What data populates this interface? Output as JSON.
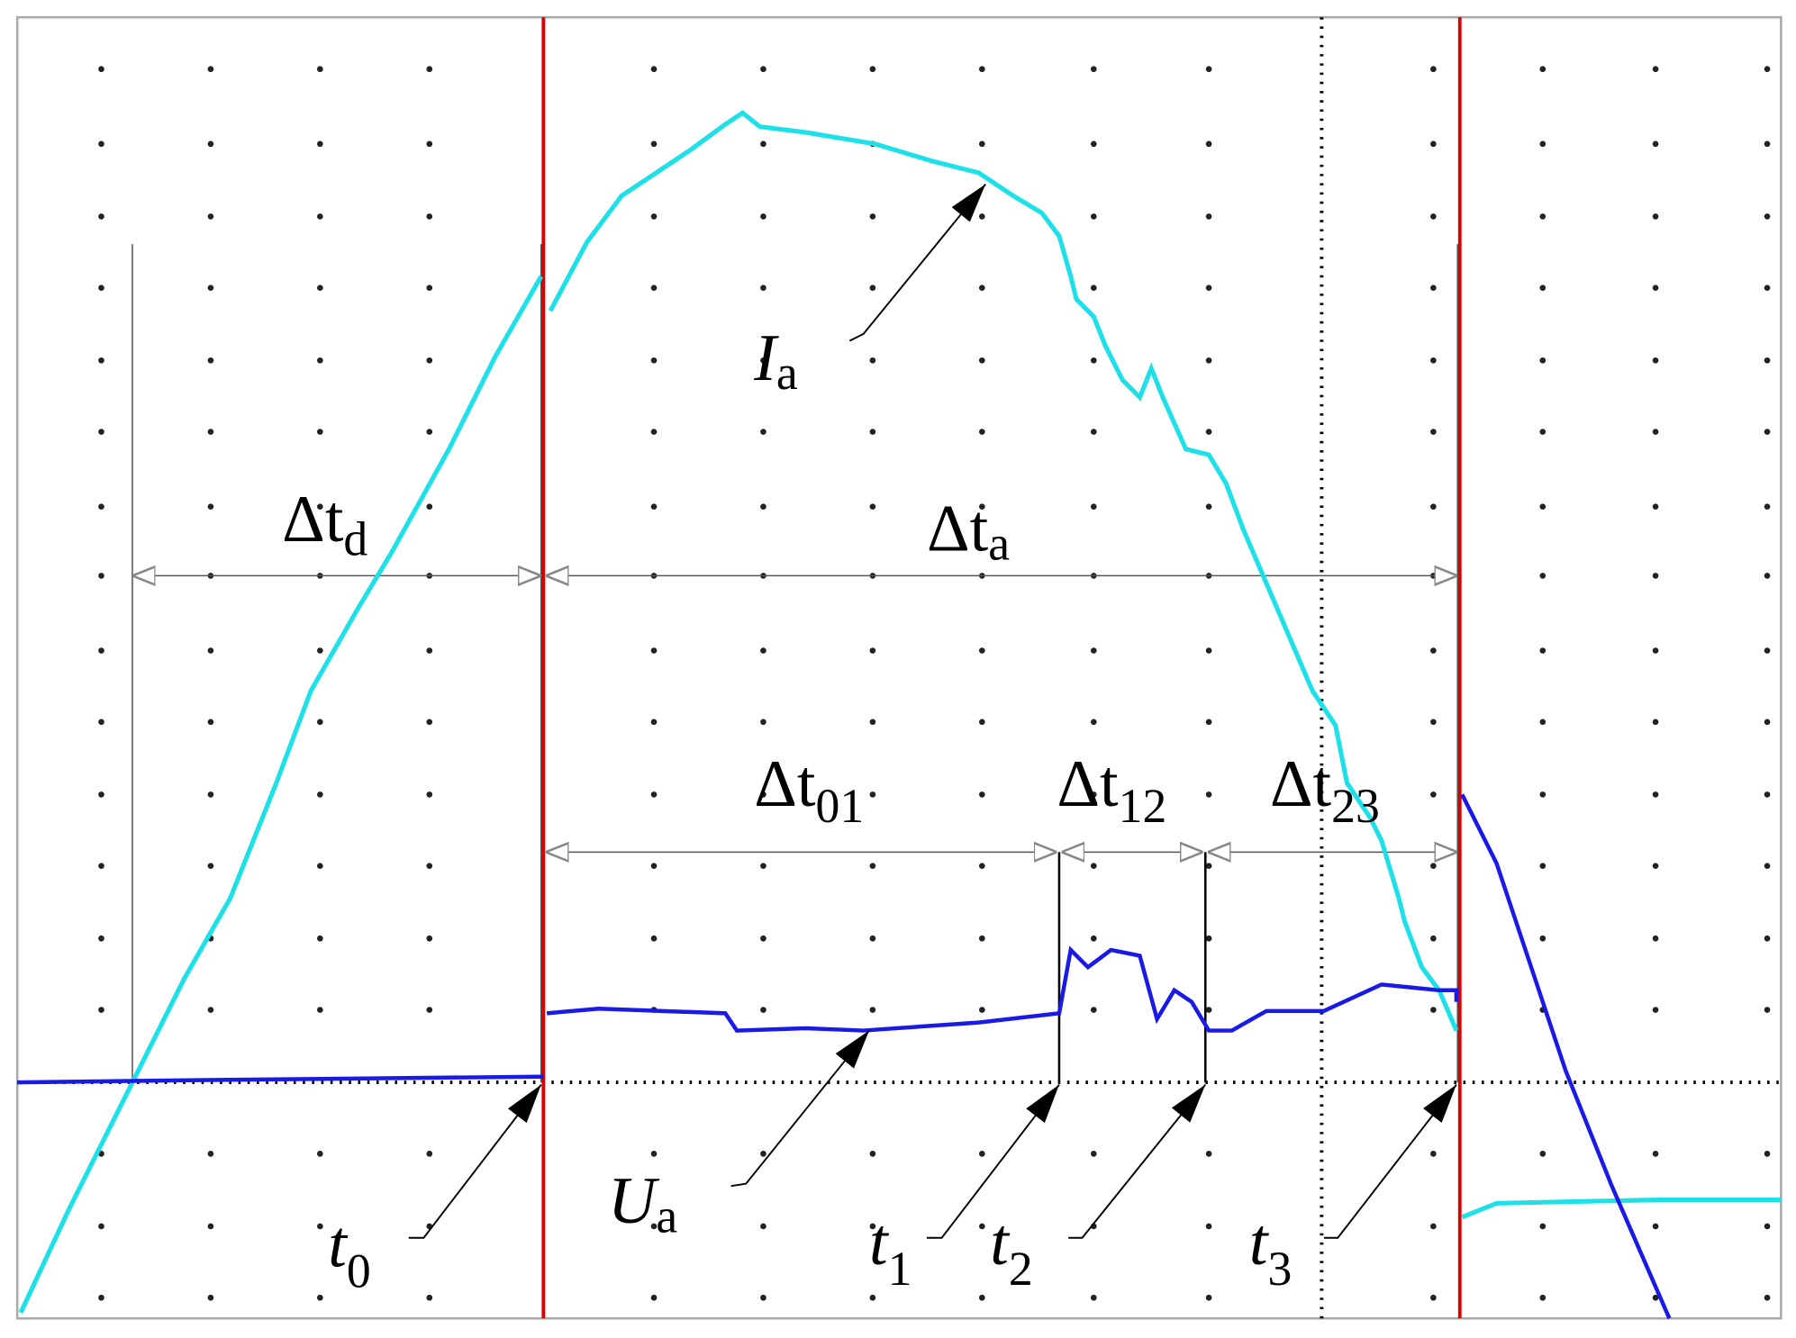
{
  "labels": {
    "dt_d": {
      "main": "Δt",
      "sub": "d"
    },
    "dt_a": {
      "main": "Δt",
      "sub": "a"
    },
    "dt_01": {
      "main": "Δt",
      "sub": "01"
    },
    "dt_12": {
      "main": "Δt",
      "sub": "12"
    },
    "dt_23": {
      "main": "Δt",
      "sub": "23"
    },
    "Ia": {
      "main": "I",
      "sub": "a"
    },
    "Ua": {
      "main": "U",
      "sub": "a"
    },
    "t0": {
      "main": "t",
      "sub": "0"
    },
    "t1": {
      "main": "t",
      "sub": "1"
    },
    "t2": {
      "main": "t",
      "sub": "2"
    },
    "t3": {
      "main": "t",
      "sub": "3"
    }
  }
}
